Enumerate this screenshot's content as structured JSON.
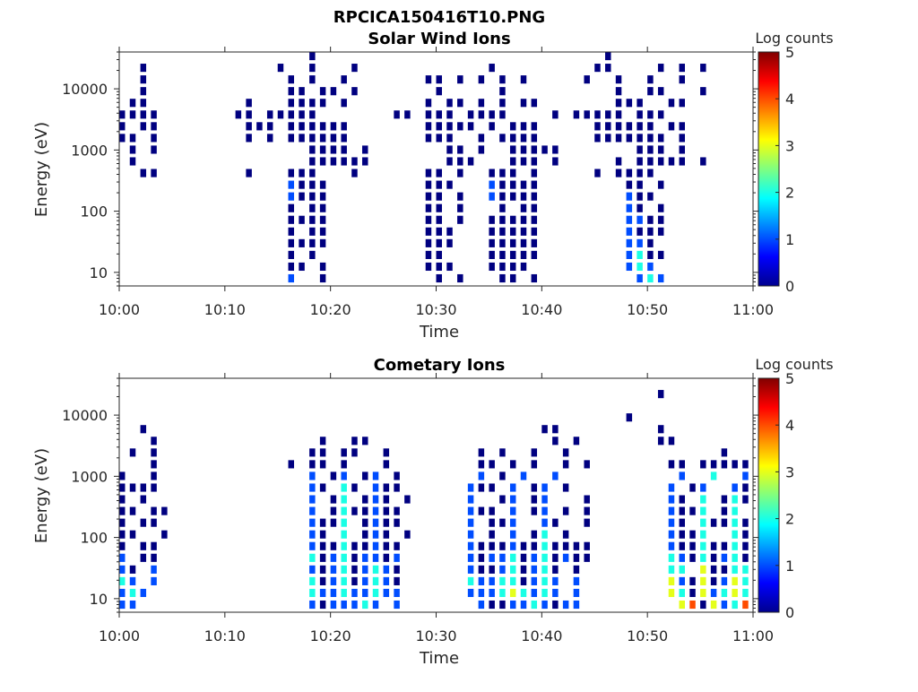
{
  "figure_title": "RPCICA150416T10.PNG",
  "chart_data": [
    {
      "type": "heatmap",
      "title": "Solar Wind Ions",
      "xlabel": "Time",
      "ylabel": "Energy (eV)",
      "x_tick_labels": [
        "10:00",
        "10:10",
        "10:20",
        "10:30",
        "10:40",
        "10:50",
        "11:00"
      ],
      "xlim": [
        "10:00",
        "11:00"
      ],
      "x_bin_minutes": 1,
      "y_scale": "log",
      "ylim": [
        6,
        40000
      ],
      "y_tick_values": [
        10,
        100,
        1000,
        10000
      ],
      "y_tick_labels": [
        "10",
        "100",
        "1000",
        "10000"
      ],
      "colorbar": {
        "label": "Log counts",
        "range": [
          0,
          5
        ],
        "tick_labels": [
          "0",
          "1",
          "2",
          "3",
          "4",
          "5"
        ],
        "colormap": "jet"
      },
      "energy_rows_top_to_bottom_eV": [
        31600,
        20400,
        13200,
        8500,
        5500,
        3550,
        2290,
        1480,
        955,
        617,
        398,
        257,
        166,
        107,
        69,
        45,
        29,
        19,
        12,
        7.8
      ],
      "log_counts_rows": [
        "..................0...........................0.............",
        "..0............0..0...0............0.........00....0.0.0......",
        "..0.............0.0..0.......00.0.0.0.0.....0..0..0..0......",
        "..0.............00.00.0.......0.....0..........0..00...0......",
        ".00.........0...0000.0.......0.00.0.0.00.......000..00......",
        "0000.......00.00000.......00.000.0000....0.00000.000.....",
        "0.00........000.000000.......00000.0.000.....000000.00......",
        "00.0........0.0.000000.......000..0.0000.....0000000.0......",
        ".0.0..............0000.0.......00.0..00000.......000.0........",
        ".0................000000.......000...000.0.....0.00000.0......",
        "..00........0...000...0......00.0..000.0.....0.0000.........",
        "................1000.........000...10000........00.0........",
        "................1000.........00.0..10000........100.........",
        "................0.00.........00.0...0.00........10.0........",
        "................0000.........00.0..00000........1100........",
        "................0.00.........000...00000........1000........",
        "................0000.........000...00000........110.........",
        "................0.0..........00....00000........1200........",
        "................00.0.........000...0000.........121.........",
        "................1..0..........0.0...00.0.........121........."
      ]
    },
    {
      "type": "heatmap",
      "title": "Cometary Ions",
      "xlabel": "Time",
      "ylabel": "Energy (eV)",
      "x_tick_labels": [
        "10:00",
        "10:10",
        "10:20",
        "10:30",
        "10:40",
        "10:50",
        "11:00"
      ],
      "xlim": [
        "10:00",
        "11:00"
      ],
      "x_bin_minutes": 1,
      "y_scale": "log",
      "ylim": [
        6,
        40000
      ],
      "y_tick_values": [
        10,
        100,
        1000,
        10000
      ],
      "y_tick_labels": [
        "10",
        "100",
        "1000",
        "10000"
      ],
      "colorbar": {
        "label": "Log counts",
        "range": [
          0,
          5
        ],
        "tick_labels": [
          "0",
          "1",
          "2",
          "3",
          "4",
          "5"
        ],
        "colormap": "jet"
      },
      "energy_rows_top_to_bottom_eV": [
        31600,
        20400,
        13200,
        8500,
        5500,
        3550,
        2290,
        1480,
        955,
        617,
        398,
        257,
        166,
        107,
        69,
        45,
        29,
        19,
        12,
        7.8
      ],
      "log_counts_rows": [
        "............................................................",
        "...................................................0........",
        "............................................................",
        "................................................0...........",
        "..0.....................................00.........0........",
        "...0...............0..00.................0.0.......00..............",
        ".0.0..............00.00..0........0.0..0..0..............0..0.0.00....",
        "...0............0.00.0...0........00.0.0..0.0.......00.00000.0.0...",
        "0..0..............1.01.01.0.......1.0.1..1...........1..2..10.0.....",
        "0000..............10.20.100......100.1.01.0.........1.01..10.0.0...",
        "0.0...............1.02.010.0.....1..01.01...0.......10.2.0200..0...",
        "00.00.............1.0200100......100.1.01.0.0.......1002.02.0.0....",
        "0.00..............1002.0100......1.001..10..0.......10.200200.00...",
        "00..0.............10.2.010.0.....1.0.1.02.0.........1002..20.0.0...",
        "0.00..............100200100......100010020000.......1002002000.....",
        "1.00..............201201101......101120120100.......2102012010.....",
        "10.1..............101201210......100120120.0........22.3002210.....",
        "21.1..............201201210......211220121.1........3103013200.....",
        "121...............211211211......111232121.1........3203123211.....",
        "11................1011121.1.......1001121011.........3403124310....."
      ]
    }
  ]
}
